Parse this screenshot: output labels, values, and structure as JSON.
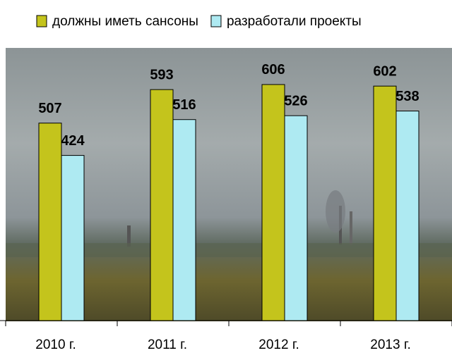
{
  "chart_data": {
    "type": "bar",
    "categories": [
      "2010 г.",
      "2011 г.",
      "2012 г.",
      "2013 г."
    ],
    "series": [
      {
        "name": "должны иметь сансоны",
        "color": "#c4c41c",
        "values": [
          507,
          593,
          606,
          602
        ]
      },
      {
        "name": "разработали проекты",
        "color": "#aeeaf2",
        "values": [
          424,
          516,
          526,
          538
        ]
      }
    ],
    "ylim": [
      0,
      700
    ],
    "legend": "top"
  }
}
